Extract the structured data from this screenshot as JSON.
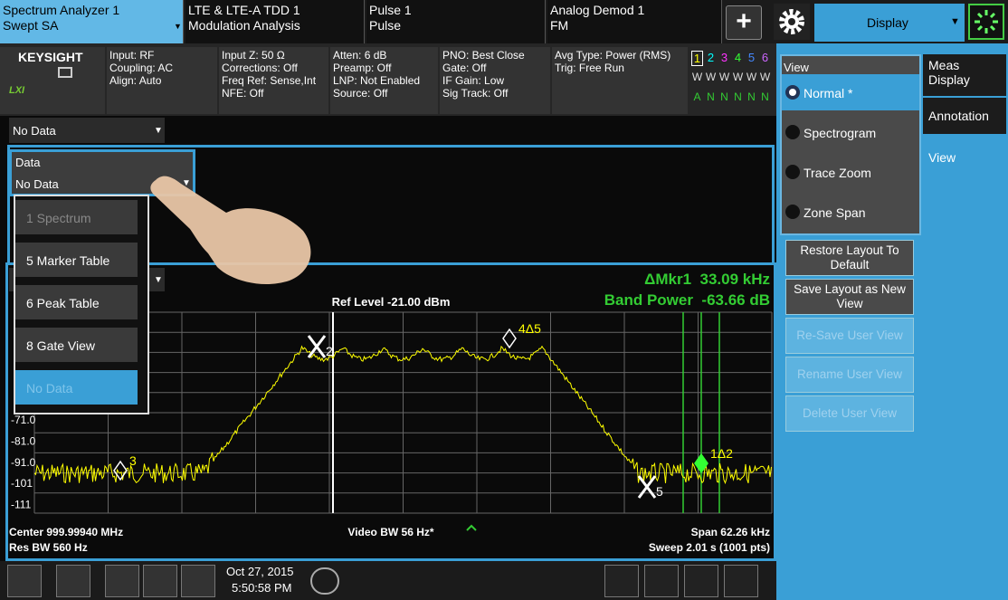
{
  "tabs": [
    {
      "title": "Spectrum Analyzer 1",
      "subtitle": "Swept SA"
    },
    {
      "title": "LTE & LTE-A TDD 1",
      "subtitle": "Modulation Analysis"
    },
    {
      "title": "Pulse 1",
      "subtitle": "Pulse"
    },
    {
      "title": "Analog Demod 1",
      "subtitle": "FM"
    }
  ],
  "menu_button": "Display",
  "status": {
    "brand": "KEYSIGHT",
    "logo": "LXI",
    "columns": [
      [
        "Input: RF",
        "Coupling: AC",
        "Align: Auto"
      ],
      [
        "Input Z: 50 Ω",
        "Corrections: Off",
        "Freq Ref: Sense,Int",
        "NFE: Off"
      ],
      [
        "Atten: 6 dB",
        "Preamp: Off",
        "LNP: Not Enabled",
        "Source: Off"
      ],
      [
        "PNO: Best Close",
        "Gate: Off",
        "IF Gain: Low",
        "Sig Track: Off"
      ],
      [
        "Avg Type: Power (RMS)",
        "Trig: Free Run"
      ]
    ],
    "trace_numbers": [
      "1",
      "2",
      "3",
      "4",
      "5",
      "6"
    ],
    "trace_types": [
      "W",
      "W",
      "W",
      "W",
      "W",
      "W"
    ],
    "trace_modes": [
      "A",
      "N",
      "N",
      "N",
      "N",
      "N"
    ]
  },
  "window": {
    "top_dropdown": "No Data",
    "data_label": "Data",
    "data_value": "No Data",
    "dropdown_items": [
      "1 Spectrum",
      "5 Marker Table",
      "6 Peak Table",
      "8 Gate View",
      "No Data"
    ]
  },
  "graph": {
    "ref_level": "Ref Level -21.00 dBm",
    "marker_readout": "ΔMkr1  33.09 kHz",
    "band_power": "Band Power  -63.66 dB",
    "y_labels": [
      "-71.0",
      "-81.0",
      "-91.0",
      "-101",
      "-111"
    ],
    "markers": [
      "2",
      "4Δ5",
      "3",
      "5",
      "1Δ2"
    ],
    "center": "Center 999.99940 MHz",
    "video_bw": "Video BW 56 Hz*",
    "span": "Span 62.26 kHz",
    "res_bw": "Res BW 560 Hz",
    "sweep": "Sweep 2.01 s (1001 pts)"
  },
  "taskbar": {
    "date": "Oct 27, 2015",
    "time": "5:50:58 PM"
  },
  "panel": {
    "group_title": "View",
    "options": [
      "Normal *",
      "Spectrogram",
      "Trace Zoom",
      "Zone Span"
    ],
    "buttons": [
      "Restore Layout To Default",
      "Save Layout as New View",
      "Re-Save User View",
      "Rename User View",
      "Delete User View"
    ],
    "side_tabs": [
      "Meas Display",
      "Annotation",
      "View"
    ]
  }
}
